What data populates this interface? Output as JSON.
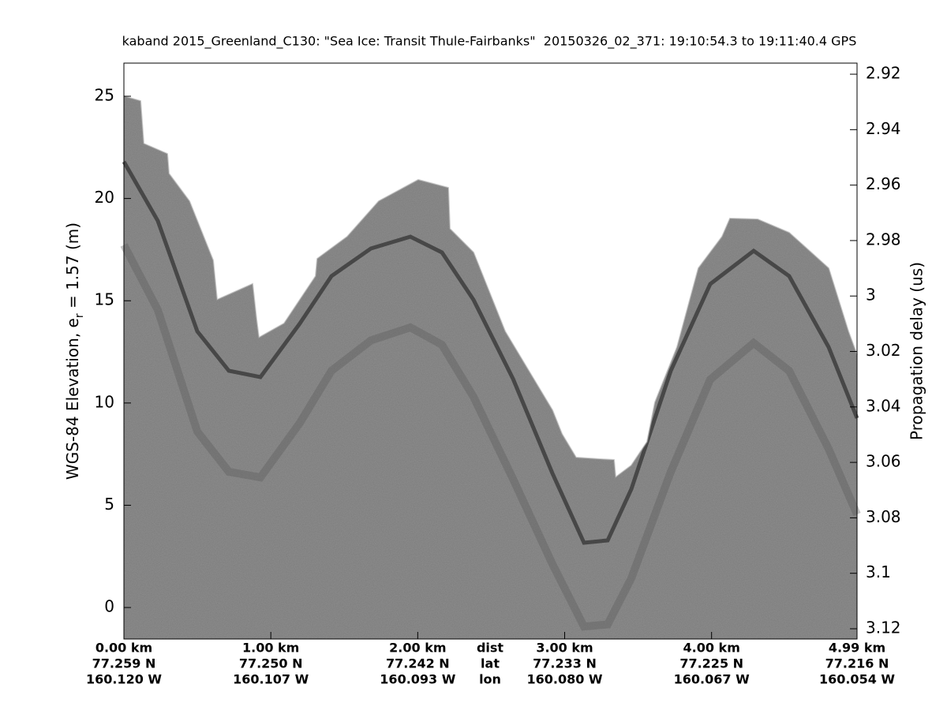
{
  "chart_data": {
    "type": "echogram",
    "title": "kaband 2015_Greenland_C130: \"Sea Ice: Transit Thule-Fairbanks\"  20150326_02_371: 19:10:54.3 to 19:11:40.4 GPS",
    "ylabel": {
      "text": "WGS-84 Elevation, e",
      "subscript": "r",
      "suffix": " = 1.57 (m)"
    },
    "y2label": "Propagation delay (us)",
    "xlim": [
      0,
      4.99
    ],
    "xticks": [
      {
        "value": 0,
        "label": "0.00 km"
      },
      {
        "value": 1,
        "label": "1.00 km"
      },
      {
        "value": 2,
        "label": "2.00 km"
      },
      {
        "value": 3,
        "label": "3.00 km"
      },
      {
        "value": 4,
        "label": "4.00 km"
      },
      {
        "value": 4.99,
        "label": "4.99 km"
      }
    ],
    "lat": [
      "77.259 N",
      "77.250 N",
      "77.242 N",
      "77.233 N",
      "77.225 N",
      "77.216 N"
    ],
    "lon": [
      "160.120 W",
      "160.107 W",
      "160.093 W",
      "160.080 W",
      "160.067 W",
      "160.054 W"
    ],
    "x_row_labels": [
      "dist",
      "lat",
      "lon"
    ],
    "ylim": [
      -1.54,
      26.62
    ],
    "yticks": [
      0,
      5,
      10,
      15,
      20,
      25
    ],
    "y2lim": [
      3.1237,
      2.916
    ],
    "y2ticks": [
      2.92,
      2.94,
      2.96,
      2.98,
      3,
      3.02,
      3.04,
      3.06,
      3.08,
      3.1,
      3.12
    ]
  }
}
